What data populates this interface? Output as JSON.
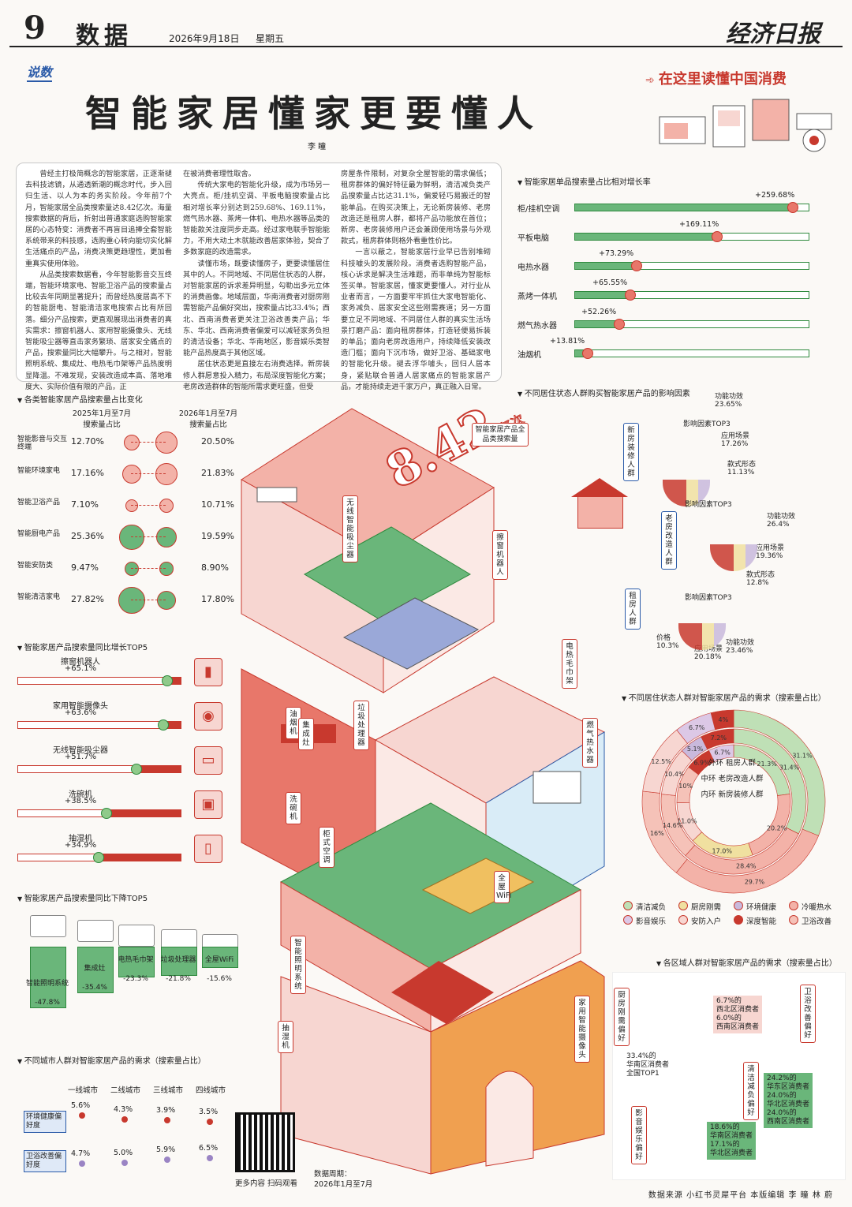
{
  "header": {
    "page_no": "9",
    "section": "数据",
    "date": "2026年9月18日",
    "weekday": "星期五",
    "masthead": "经济日报"
  },
  "column_tag": "说数",
  "promo": "在这里读懂中国消费",
  "title": "智能家居懂家更要懂人",
  "author": "李 瞳",
  "article": {
    "col1": [
      "曾经主打极简概念的智能家居，正逐渐褪去科技滤镜，从通透新潮的概念时代，步入回归生活、以人为本的务实阶段。今年前7个月，智能家居全品类搜索量达8.42亿次。海量搜索数据的背后，折射出普通家庭选购智能家居的心态特变：消费者不再盲目追捧全套智能系统带来的科技感，选购重心转向能切实化解生活痛点的产品，消费决策更趋理性，更加看重真实使用体验。",
      "从品类搜索数据看，今年智能影音交互终端，智能环境家电、智能卫浴产品的搜索量占比较去年同期显著提升；而曾经热度居高不下的智能厨电、智能清洁家电搜索占比有所回落。细分产品搜索，更直观展现出消费者的真实需求：擦窗机器人、家用智能摄像头、无线智能吸尘器等直击家务繁琐、居家安全痛点的产品，搜索量同比大幅攀升。与之相对，智能照明系统、集成灶、电热毛巾架等产品热度明显降温。不难发现，安装改造成本高、落地难度大、实际价值有限的产品，正"
    ],
    "col2": [
      "在被消费者理性取舍。",
      "传统大家电的智能化升级，成为市场另一大亮点。柜/挂机空调、平板电脑搜索量占比相对增长率分别达到259.68%、169.11%，燃气热水器、蒸烤一体机、电热水器等品类的智能款关注度同步走高。经过家电联手智能能力，不用大动土木就能改善居家体验，契合了多数家庭的改造需求。",
      "读懂市场，既要读懂房子，更要读懂居住其中的人。不同地域、不同居住状态的人群，对智能家居的诉求差异明显，勾勒出多元立体的消费画像。地域层面，华南消费者对厨房刚需智能产品偏好突出，搜索量占比33.4%；西北、西南消费者更关注卫浴改善类产品；华东、华北、西南消费者偏爱可以减轻家务负担的清洁设备；华北、华南地区，影音娱乐类智能产品热度高于其他区域。",
      "居住状态更是直接左右消费选择。新房装修人群愿意投入精力，布局深度智能化方案；老房改造群体的智能所需求更旺盛，但受"
    ],
    "col3": [
      "房屋条件限制，对复杂全屋智能的需求偏低；租房群体的偏好特征最为鲜明，清洁减负类产品搜索量占比达31.1%，偏爱轻巧易搬迁的智能单品。在购买决策上，无论新房装修、老房改造还是租房人群，都将产品功能放在首位；新房、老房装修用户还会兼顾使用场景与外观款式，租房群体则格外看重性价比。",
      "一言以蔽之，智能家居行业早已告别堆砌科技噱头的发展阶段。消费者选购智能产品，核心诉求是解决生活难题，而非单纯为智能标签买单。智能家居，懂家更要懂人。对行业从业者而言，一方面要牢牢抓住大家电智能化、家务减负、居家安全这些刚需赛道；另一方面要立足不同地域、不同居住人群的真实生活场景打磨产品：面向租房群体，打造轻便易拆装的单品；面向老房改造用户，持续降低安装改造门槛；面向下沉市场，做好卫浴、基础家电的智能化升级。褪去浮华噱头，回归人居本身，紧贴联合普通人居家痛点的智能家居产品，才能持续走进千家万户，真正融入日常。"
    ]
  },
  "growth_section": {
    "title": "智能家居单品搜索量占比相对增长率",
    "items": [
      {
        "name": "柜/挂机空调",
        "label": "+259.68%",
        "value": 259.68
      },
      {
        "name": "平板电脑",
        "label": "+169.11%",
        "value": 169.11
      },
      {
        "name": "电热水器",
        "label": "+73.29%",
        "value": 73.29
      },
      {
        "name": "蒸烤一体机",
        "label": "+65.55%",
        "value": 65.55
      },
      {
        "name": "燃气热水器",
        "label": "+52.26%",
        "value": 52.26
      },
      {
        "name": "油烟机",
        "label": "+13.81%",
        "value": 13.81
      }
    ]
  },
  "category_section": {
    "title": "各类智能家居产品搜索量占比变化",
    "col_left": "2025年1月至7月 搜索量占比",
    "col_right": "2026年1月至7月 搜索量占比",
    "rows": [
      {
        "name": "智能影音与交互终端",
        "v2025": "12.70%",
        "v2026": "20.50%",
        "a": 12.7,
        "b": 20.5
      },
      {
        "name": "智能环境家电",
        "v2025": "17.16%",
        "v2026": "21.83%",
        "a": 17.16,
        "b": 21.83
      },
      {
        "name": "智能卫浴产品",
        "v2025": "7.10%",
        "v2026": "10.71%",
        "a": 7.1,
        "b": 10.71
      },
      {
        "name": "智能厨电产品",
        "v2025": "25.36%",
        "v2026": "19.59%",
        "a": 25.36,
        "b": 19.59
      },
      {
        "name": "智能安防类",
        "v2025": "9.47%",
        "v2026": "8.90%",
        "a": 9.47,
        "b": 8.9
      },
      {
        "name": "智能清洁家电",
        "v2025": "27.82%",
        "v2026": "17.80%",
        "a": 27.82,
        "b": 17.8
      }
    ]
  },
  "top5_up": {
    "title": "智能家居产品搜索量同比增长TOP5",
    "items": [
      {
        "name": "擦窗机器人",
        "label": "+65.1%",
        "value": 65.1
      },
      {
        "name": "家用智能摄像头",
        "label": "+63.6%",
        "value": 63.6
      },
      {
        "name": "无线智能吸尘器",
        "label": "+51.7%",
        "value": 51.7
      },
      {
        "name": "洗碗机",
        "label": "+38.5%",
        "value": 38.5
      },
      {
        "name": "抽湿机",
        "label": "+34.9%",
        "value": 34.9
      }
    ]
  },
  "top5_down": {
    "title": "智能家居产品搜索量同比下降TOP5",
    "items": [
      {
        "name": "智能照明系统",
        "label": "-47.8%",
        "value": -47.8
      },
      {
        "name": "集成灶",
        "label": "-35.4%",
        "value": -35.4
      },
      {
        "name": "电热毛巾架",
        "label": "-23.3%",
        "value": -23.3
      },
      {
        "name": "垃圾处理器",
        "label": "-21.8%",
        "value": -21.8
      },
      {
        "name": "全屋WiFi",
        "label": "-15.6%",
        "value": -15.6
      }
    ]
  },
  "city_section": {
    "title": "不同城市人群对智能家居产品的需求（搜索量占比）",
    "tiers": [
      "一线城市",
      "二线城市",
      "三线城市",
      "四线城市"
    ],
    "rows": [
      {
        "name": "环境健康偏好度",
        "values": [
          "5.6%",
          "4.3%",
          "3.9%",
          "3.5%"
        ],
        "nums": [
          5.6,
          4.3,
          3.9,
          3.5
        ]
      },
      {
        "name": "卫浴改善偏好度",
        "values": [
          "4.7%",
          "5.0%",
          "5.9%",
          "6.5%"
        ],
        "nums": [
          4.7,
          5.0,
          5.9,
          6.5
        ]
      }
    ]
  },
  "illustration": {
    "big_number": "8.42",
    "big_unit": "亿次",
    "total_label": "智能家居产品全品类搜索量",
    "tags": [
      "无线智能吸尘器",
      "擦窗机器人",
      "电热毛巾架",
      "油烟机",
      "集成灶",
      "垃圾处理器",
      "燃气热水器",
      "洗碗机",
      "柜式空调",
      "全屋WiFi",
      "智能照明系统",
      "抽湿机",
      "家用智能摄像头"
    ]
  },
  "factor_section": {
    "title": "不同居住状态人群购买智能家居产品的影响因素",
    "groups": [
      {
        "name": "新房装修人群",
        "top": "影响因素TOP3",
        "f": [
          {
            "n": "功能功效",
            "v": "23.65%"
          },
          {
            "n": "应用场景",
            "v": "17.26%"
          },
          {
            "n": "款式形态",
            "v": "11.13%"
          }
        ]
      },
      {
        "name": "老房改造人群",
        "top": "影响因素TOP3",
        "f": [
          {
            "n": "功能功效",
            "v": "26.4%"
          },
          {
            "n": "应用场景",
            "v": "19.36%"
          },
          {
            "n": "款式形态",
            "v": "12.8%"
          }
        ]
      },
      {
        "name": "租房人群",
        "top": "影响因素TOP3",
        "f": [
          {
            "n": "功能功效",
            "v": "23.46%"
          },
          {
            "n": "应用场景",
            "v": "20.18%"
          },
          {
            "n": "价格",
            "v": "10.3%"
          }
        ]
      }
    ]
  },
  "ring_section": {
    "title": "不同居住状态人群对智能家居产品的需求（搜索量占比）",
    "outer": "外环 租房人群",
    "middle": "中环 老房改造人群",
    "inner": "内环 新房装修人群",
    "colors": {
      "清洁减负": "#bfe0b6",
      "厨房刚需": "#f0e0a0",
      "环境健康": "#c9b9dc",
      "冷暖热水": "#f3b2a8",
      "影音娱乐": "#dcc8e6",
      "安防入户": "#f7d6d1",
      "深度智能": "#c8392e",
      "卫浴改善": "#f5c2b8"
    },
    "legend": [
      "清洁减负",
      "厨房刚需",
      "环境健康",
      "冷暖热水",
      "影音娱乐",
      "安防入户",
      "深度智能",
      "卫浴改善"
    ],
    "rings": {
      "outer": [
        {
          "k": "清洁减负",
          "v": 31.1,
          "t": "31.1%"
        },
        {
          "k": "冷暖热水",
          "v": 29.7,
          "t": "29.7%"
        },
        {
          "k": "卫浴改善",
          "v": 16.0,
          "t": "16%"
        },
        {
          "k": "安防入户",
          "v": 12.5,
          "t": "12.5%"
        },
        {
          "k": "影音娱乐",
          "v": 6.7,
          "t": "6.7%"
        },
        {
          "k": "深度智能",
          "v": 4.0,
          "t": "4%"
        }
      ],
      "middle": [
        {
          "k": "清洁减负",
          "v": 31.4,
          "t": "31.4%"
        },
        {
          "k": "冷暖热水",
          "v": 28.4,
          "t": "28.4%"
        },
        {
          "k": "卫浴改善",
          "v": 14.6,
          "t": "14.6%"
        },
        {
          "k": "安防入户",
          "v": 10.4,
          "t": "10.4%"
        },
        {
          "k": "环境健康",
          "v": 5.1,
          "t": "5.1%"
        },
        {
          "k": "深度智能",
          "v": 7.2,
          "t": "7.2%"
        }
      ],
      "inner": [
        {
          "k": "清洁减负",
          "v": 21.3,
          "t": "21.3%"
        },
        {
          "k": "冷暖热水",
          "v": 20.2,
          "t": "20.2%"
        },
        {
          "k": "厨房刚需",
          "v": 17.0,
          "t": "17.0%"
        },
        {
          "k": "安防入户",
          "v": 11.0,
          "t": "11.0%"
        },
        {
          "k": "卫浴改善",
          "v": 10.0,
          "t": "10%"
        },
        {
          "k": "深度智能",
          "v": 6.9,
          "t": "6.9%"
        },
        {
          "k": "影音娱乐",
          "v": 6.7,
          "t": "6.7%"
        }
      ]
    }
  },
  "region_section": {
    "title": "各区域人群对智能家居产品的需求（搜索量占比）",
    "blocks": [
      {
        "tag": "厨房刚需偏好",
        "lines": [
          "33.4%的",
          "华南区消费者",
          "全国TOP1"
        ]
      },
      {
        "tag": "卫浴改善偏好",
        "lines": [
          "6.7%的",
          "西北区消费者",
          "6.0%的",
          "西南区消费者"
        ]
      },
      {
        "tag": "清洁减负偏好",
        "lines": [
          "24.2%的",
          "华东区消费者",
          "24.0%的",
          "华北区消费者",
          "24.0%的",
          "西南区消费者"
        ]
      },
      {
        "tag": "影音娱乐偏好",
        "lines": [
          "18.6%的",
          "华南区消费者",
          "17.1%的",
          "华北区消费者"
        ]
      }
    ]
  },
  "footer": {
    "qr_caption": "更多内容 扫码观看",
    "period_label": "数据周期：",
    "period": "2026年1月至7月",
    "credits": "数据来源  小红书灵犀平台  本版编辑  李 瞳  林 蔚"
  }
}
